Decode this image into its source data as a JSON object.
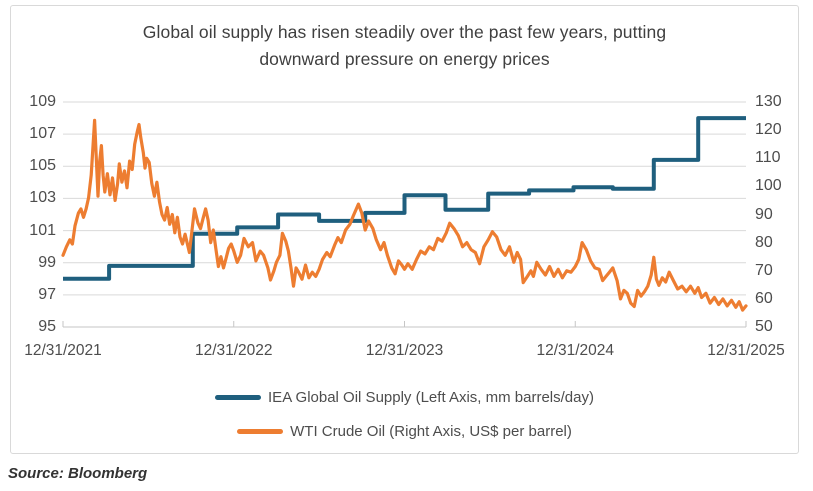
{
  "title": {
    "line1": "Global oil supply has risen steadily over the past few years, putting",
    "line2": "downward pressure on energy prices"
  },
  "source_note": "Source: Bloomberg",
  "colors": {
    "grid": "#D9D9D9",
    "axis": "#C6C6C6",
    "tick_text": "#4D4D4D",
    "title_text": "#3F3F3F",
    "source_text": "#333333",
    "card_border": "#D9D9D9",
    "iea_blue": "#1F5F7E",
    "wti_orange": "#ED7D31"
  },
  "chart_data": {
    "type": "line",
    "title": "Global oil supply has risen steadily over the past few years, putting downward pressure on energy prices",
    "grid": "horizontal",
    "legend_position": "bottom",
    "x_axis": {
      "tick_labels": [
        "12/31/2021",
        "12/31/2022",
        "12/31/2023",
        "12/31/2024",
        "12/31/2025"
      ],
      "range_years": [
        0,
        4
      ],
      "note": "t in series points = years after 12/31/2021"
    },
    "left_axis": {
      "title": "IEA Global Oil Supply (mm barrels/day)",
      "ticks": [
        109,
        107,
        105,
        103,
        101,
        99,
        97,
        95
      ],
      "range": [
        95,
        109
      ]
    },
    "right_axis": {
      "title": "WTI Crude Oil (US$ per barrel)",
      "ticks": [
        130,
        120,
        110,
        100,
        90,
        80,
        70,
        60,
        50
      ],
      "range": [
        50,
        130
      ]
    },
    "series": [
      {
        "name": "IEA Global Oil Supply (Left Axis, mm barrels/day)",
        "axis": "left",
        "color": "#1F5F7E",
        "line_style": "step",
        "points": [
          [
            0.0,
            98.0
          ],
          [
            0.27,
            98.8
          ],
          [
            0.76,
            100.8
          ],
          [
            1.02,
            101.2
          ],
          [
            1.26,
            102.0
          ],
          [
            1.5,
            101.6
          ],
          [
            1.77,
            102.1
          ],
          [
            2.0,
            103.2
          ],
          [
            2.24,
            102.3
          ],
          [
            2.49,
            103.3
          ],
          [
            2.73,
            103.5
          ],
          [
            2.99,
            103.7
          ],
          [
            3.22,
            103.6
          ],
          [
            3.46,
            105.4
          ],
          [
            3.72,
            108.0
          ]
        ]
      },
      {
        "name": "WTI Crude Oil (Right Axis, US$ per barrel)",
        "axis": "right",
        "color": "#ED7D31",
        "line_style": "line",
        "points": [
          [
            0.0,
            75.5
          ],
          [
            0.02,
            78.5
          ],
          [
            0.04,
            81.0
          ],
          [
            0.055,
            79.5
          ],
          [
            0.07,
            86.0
          ],
          [
            0.09,
            90.5
          ],
          [
            0.105,
            92.0
          ],
          [
            0.12,
            89.0
          ],
          [
            0.135,
            92.0
          ],
          [
            0.15,
            96.0
          ],
          [
            0.165,
            104.0
          ],
          [
            0.185,
            123.5
          ],
          [
            0.195,
            110.0
          ],
          [
            0.205,
            96.5
          ],
          [
            0.215,
            109.0
          ],
          [
            0.225,
            114.5
          ],
          [
            0.235,
            104.0
          ],
          [
            0.245,
            98.0
          ],
          [
            0.26,
            104.5
          ],
          [
            0.275,
            97.0
          ],
          [
            0.29,
            103.0
          ],
          [
            0.305,
            95.0
          ],
          [
            0.32,
            101.0
          ],
          [
            0.33,
            108.0
          ],
          [
            0.345,
            101.5
          ],
          [
            0.36,
            105.5
          ],
          [
            0.375,
            99.5
          ],
          [
            0.39,
            109.0
          ],
          [
            0.405,
            106.0
          ],
          [
            0.42,
            115.0
          ],
          [
            0.435,
            119.5
          ],
          [
            0.445,
            122.0
          ],
          [
            0.455,
            117.5
          ],
          [
            0.47,
            112.0
          ],
          [
            0.48,
            106.5
          ],
          [
            0.49,
            110.0
          ],
          [
            0.505,
            108.5
          ],
          [
            0.52,
            101.0
          ],
          [
            0.535,
            96.5
          ],
          [
            0.55,
            101.5
          ],
          [
            0.565,
            94.5
          ],
          [
            0.58,
            90.0
          ],
          [
            0.595,
            88.0
          ],
          [
            0.61,
            92.5
          ],
          [
            0.625,
            86.5
          ],
          [
            0.64,
            90.0
          ],
          [
            0.655,
            83.5
          ],
          [
            0.67,
            89.0
          ],
          [
            0.685,
            82.0
          ],
          [
            0.7,
            79.5
          ],
          [
            0.715,
            83.0
          ],
          [
            0.74,
            76.5
          ],
          [
            0.77,
            92.0
          ],
          [
            0.79,
            87.0
          ],
          [
            0.805,
            85.0
          ],
          [
            0.82,
            88.5
          ],
          [
            0.835,
            92.0
          ],
          [
            0.85,
            88.0
          ],
          [
            0.865,
            80.0
          ],
          [
            0.88,
            84.5
          ],
          [
            0.895,
            78.0
          ],
          [
            0.91,
            71.5
          ],
          [
            0.925,
            75.0
          ],
          [
            0.94,
            71.0
          ],
          [
            0.955,
            74.5
          ],
          [
            0.97,
            78.0
          ],
          [
            0.985,
            79.5
          ],
          [
            1.0,
            77.0
          ],
          [
            1.02,
            73.0
          ],
          [
            1.04,
            75.5
          ],
          [
            1.06,
            81.5
          ],
          [
            1.085,
            78.5
          ],
          [
            1.11,
            80.0
          ],
          [
            1.13,
            73.5
          ],
          [
            1.155,
            77.0
          ],
          [
            1.175,
            75.5
          ],
          [
            1.2,
            71.0
          ],
          [
            1.215,
            66.7
          ],
          [
            1.235,
            70.0
          ],
          [
            1.25,
            73.0
          ],
          [
            1.27,
            75.5
          ],
          [
            1.285,
            83.3
          ],
          [
            1.305,
            80.5
          ],
          [
            1.32,
            77.0
          ],
          [
            1.335,
            71.0
          ],
          [
            1.35,
            64.5
          ],
          [
            1.365,
            71.0
          ],
          [
            1.38,
            69.5
          ],
          [
            1.4,
            67.0
          ],
          [
            1.42,
            72.0
          ],
          [
            1.44,
            67.5
          ],
          [
            1.46,
            69.5
          ],
          [
            1.48,
            68.0
          ],
          [
            1.5,
            70.5
          ],
          [
            1.52,
            74.0
          ],
          [
            1.545,
            76.5
          ],
          [
            1.565,
            75.0
          ],
          [
            1.59,
            79.0
          ],
          [
            1.61,
            81.8
          ],
          [
            1.63,
            80.0
          ],
          [
            1.655,
            84.5
          ],
          [
            1.68,
            86.5
          ],
          [
            1.7,
            89.5
          ],
          [
            1.73,
            93.7
          ],
          [
            1.75,
            90.5
          ],
          [
            1.77,
            84.5
          ],
          [
            1.79,
            87.7
          ],
          [
            1.815,
            85.0
          ],
          [
            1.835,
            81.0
          ],
          [
            1.86,
            77.5
          ],
          [
            1.88,
            80.0
          ],
          [
            1.9,
            75.5
          ],
          [
            1.925,
            71.0
          ],
          [
            1.945,
            68.9
          ],
          [
            1.965,
            73.5
          ],
          [
            1.985,
            72.0
          ],
          [
            2.0,
            70.5
          ],
          [
            2.02,
            72.5
          ],
          [
            2.045,
            70.5
          ],
          [
            2.07,
            74.0
          ],
          [
            2.095,
            77.0
          ],
          [
            2.12,
            76.0
          ],
          [
            2.145,
            78.5
          ],
          [
            2.17,
            77.5
          ],
          [
            2.195,
            81.5
          ],
          [
            2.22,
            80.5
          ],
          [
            2.245,
            83.5
          ],
          [
            2.265,
            86.9
          ],
          [
            2.29,
            85.0
          ],
          [
            2.315,
            82.5
          ],
          [
            2.34,
            78.5
          ],
          [
            2.365,
            80.0
          ],
          [
            2.39,
            77.5
          ],
          [
            2.415,
            76.5
          ],
          [
            2.44,
            72.5
          ],
          [
            2.465,
            78.5
          ],
          [
            2.49,
            81.0
          ],
          [
            2.515,
            83.9
          ],
          [
            2.54,
            82.0
          ],
          [
            2.565,
            77.5
          ],
          [
            2.59,
            75.5
          ],
          [
            2.615,
            78.5
          ],
          [
            2.64,
            73.0
          ],
          [
            2.66,
            76.5
          ],
          [
            2.68,
            74.0
          ],
          [
            2.695,
            65.8
          ],
          [
            2.72,
            68.0
          ],
          [
            2.74,
            70.0
          ],
          [
            2.755,
            68.0
          ],
          [
            2.775,
            73.0
          ],
          [
            2.8,
            70.5
          ],
          [
            2.825,
            68.5
          ],
          [
            2.85,
            71.5
          ],
          [
            2.875,
            68.0
          ],
          [
            2.9,
            70.5
          ],
          [
            2.925,
            67.5
          ],
          [
            2.95,
            70.0
          ],
          [
            2.975,
            69.5
          ],
          [
            3.0,
            71.5
          ],
          [
            3.02,
            74.0
          ],
          [
            3.04,
            80.0
          ],
          [
            3.065,
            77.5
          ],
          [
            3.09,
            73.5
          ],
          [
            3.115,
            71.0
          ],
          [
            3.14,
            70.5
          ],
          [
            3.16,
            66.5
          ],
          [
            3.18,
            68.0
          ],
          [
            3.2,
            69.5
          ],
          [
            3.22,
            71.0
          ],
          [
            3.245,
            66.5
          ],
          [
            3.265,
            60.0
          ],
          [
            3.285,
            63.0
          ],
          [
            3.305,
            62.0
          ],
          [
            3.325,
            58.5
          ],
          [
            3.345,
            57.3
          ],
          [
            3.365,
            63.0
          ],
          [
            3.385,
            61.0
          ],
          [
            3.405,
            62.5
          ],
          [
            3.425,
            64.5
          ],
          [
            3.445,
            68.5
          ],
          [
            3.46,
            74.8
          ],
          [
            3.475,
            67.0
          ],
          [
            3.49,
            64.8
          ],
          [
            3.51,
            67.5
          ],
          [
            3.53,
            66.0
          ],
          [
            3.55,
            69.5
          ],
          [
            3.575,
            66.5
          ],
          [
            3.6,
            63.5
          ],
          [
            3.625,
            64.5
          ],
          [
            3.65,
            62.5
          ],
          [
            3.675,
            64.5
          ],
          [
            3.7,
            62.0
          ],
          [
            3.72,
            64.0
          ],
          [
            3.74,
            60.5
          ],
          [
            3.765,
            62.0
          ],
          [
            3.79,
            58.5
          ],
          [
            3.815,
            60.5
          ],
          [
            3.84,
            58.0
          ],
          [
            3.865,
            60.0
          ],
          [
            3.89,
            57.5
          ],
          [
            3.915,
            59.5
          ],
          [
            3.94,
            57.0
          ],
          [
            3.96,
            59.0
          ],
          [
            3.98,
            56.0
          ],
          [
            4.0,
            57.5
          ]
        ]
      }
    ]
  }
}
